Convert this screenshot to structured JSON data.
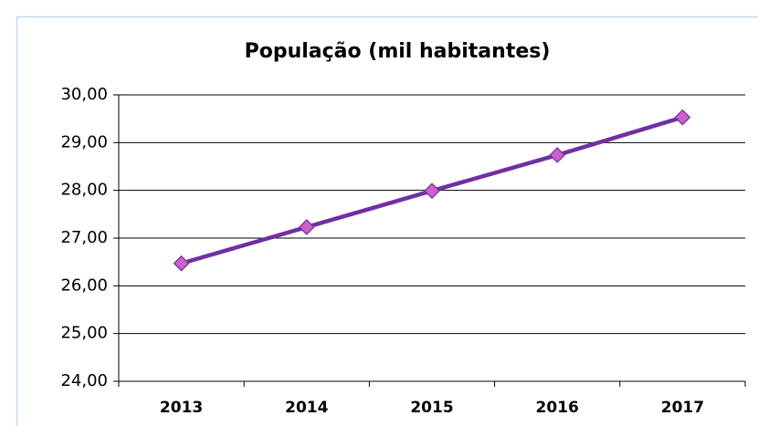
{
  "chart_data": {
    "type": "line",
    "title": "População (mil habitantes)",
    "categories": [
      "2013",
      "2014",
      "2015",
      "2016",
      "2017"
    ],
    "values": [
      26.47,
      27.23,
      27.99,
      28.74,
      29.53
    ],
    "color": "#7030a0",
    "marker_color": "#cc5fcc",
    "ylim": [
      24,
      30
    ],
    "yticks": [
      {
        "value": 24,
        "label": "24,00"
      },
      {
        "value": 25,
        "label": "25,00"
      },
      {
        "value": 26,
        "label": "26,00"
      },
      {
        "value": 27,
        "label": "27,00"
      },
      {
        "value": 28,
        "label": "28,00"
      },
      {
        "value": 29,
        "label": "29,00"
      },
      {
        "value": 30,
        "label": "30,00"
      }
    ],
    "grid": true
  }
}
